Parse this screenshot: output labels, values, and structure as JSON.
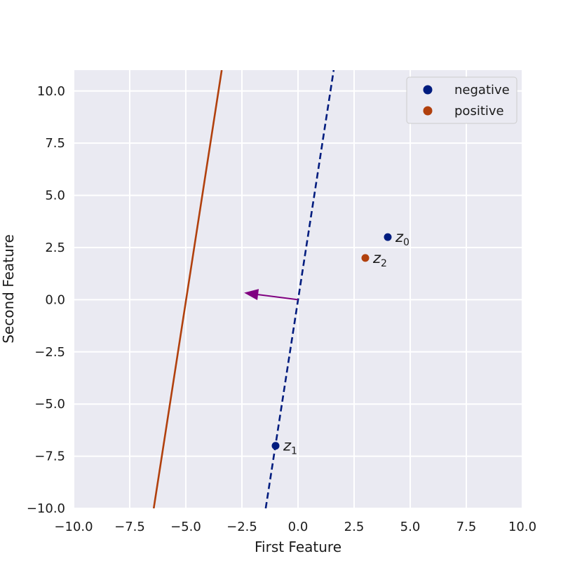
{
  "chart_data": {
    "type": "scatter",
    "title": "",
    "xlabel": "First Feature",
    "ylabel": "Second Feature",
    "xlim": [
      -10,
      10
    ],
    "ylim": [
      -10,
      11
    ],
    "xticks": [
      -10,
      -7.5,
      -5,
      -2.5,
      0,
      2.5,
      5,
      7.5,
      10
    ],
    "yticks": [
      -10,
      -7.5,
      -5,
      -2.5,
      0,
      2.5,
      5,
      7.5,
      10
    ],
    "xtick_labels": [
      "−10.0",
      "−7.5",
      "−5.0",
      "−2.5",
      "0.0",
      "2.5",
      "5.0",
      "7.5",
      "10.0"
    ],
    "ytick_labels": [
      "−10.0",
      "−7.5",
      "−5.0",
      "−2.5",
      "0.0",
      "2.5",
      "5.0",
      "7.5",
      "10.0"
    ],
    "grid": true,
    "legend_position": "top-right",
    "series": [
      {
        "name": "negative",
        "color": "#001c7f",
        "points": [
          {
            "x": 4.0,
            "y": 3.0,
            "label": "z",
            "sub": "0"
          },
          {
            "x": -1.0,
            "y": -7.0,
            "label": "z",
            "sub": "1"
          }
        ]
      },
      {
        "name": "positive",
        "color": "#b1400d",
        "points": [
          {
            "x": 3.0,
            "y": 2.0,
            "label": "z",
            "sub": "2"
          }
        ]
      }
    ],
    "lines": [
      {
        "kind": "solid",
        "color": "#b1400d",
        "from": [
          -6.43,
          -10
        ],
        "to": [
          -3.4,
          11
        ]
      },
      {
        "kind": "dashed",
        "color": "#001c7f",
        "from": [
          -1.44,
          -10
        ],
        "to": [
          1.59,
          11
        ]
      }
    ],
    "arrow": {
      "color": "#800080",
      "from": [
        0,
        0
      ],
      "to": [
        -2.4,
        0.33
      ]
    }
  }
}
